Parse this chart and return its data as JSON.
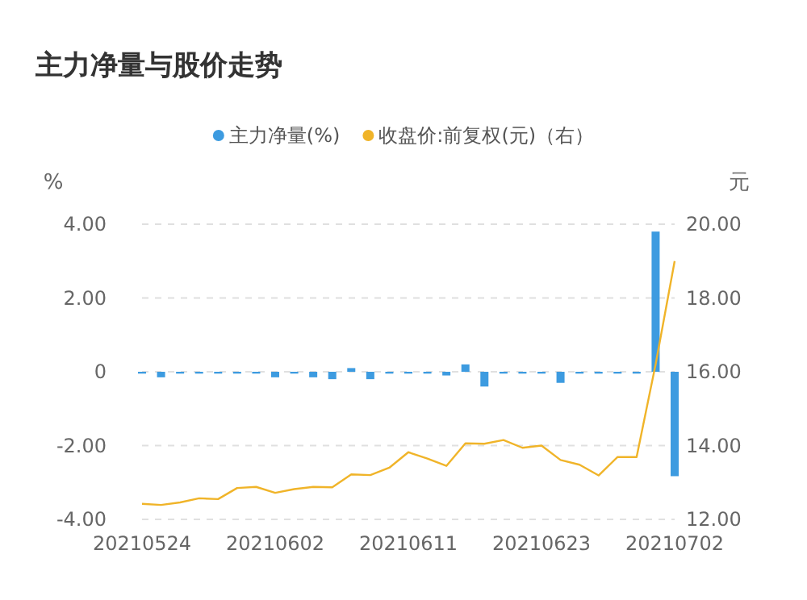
{
  "chart_data": {
    "type": "bar",
    "title": "主力净量与股价走势",
    "ylabel": "%",
    "y2label": "元",
    "categories": [
      "20210524",
      null,
      null,
      null,
      null,
      null,
      null,
      "20210602",
      null,
      null,
      null,
      null,
      null,
      null,
      "20210611",
      null,
      null,
      null,
      null,
      null,
      null,
      "20210623",
      null,
      null,
      null,
      null,
      null,
      null,
      "20210702"
    ],
    "series": [
      {
        "name": "主力净量(%)",
        "color": "#3d9be0",
        "values": [
          -0.05,
          -0.15,
          -0.05,
          -0.05,
          -0.05,
          -0.05,
          -0.05,
          -0.15,
          -0.05,
          -0.15,
          -0.2,
          0.1,
          -0.2,
          -0.05,
          -0.05,
          -0.05,
          -0.1,
          0.2,
          -0.4,
          -0.05,
          -0.05,
          -0.05,
          -0.3,
          -0.05,
          -0.05,
          -0.05,
          -0.05,
          3.8,
          -2.83
        ]
      },
      {
        "name": "收盘价:前复权(元)（右）",
        "type": "line",
        "axis": "y2",
        "color": "#f0b429",
        "values": [
          12.42,
          12.39,
          12.46,
          12.57,
          12.55,
          12.85,
          12.88,
          12.72,
          12.82,
          12.88,
          12.87,
          13.22,
          13.2,
          13.4,
          13.82,
          13.65,
          13.45,
          14.06,
          14.05,
          14.15,
          13.94,
          14.0,
          13.61,
          13.48,
          13.19,
          13.69,
          13.69,
          16.2,
          19.0
        ]
      }
    ],
    "ylim": [
      -4,
      4
    ],
    "yticks": [
      {
        "value": -4,
        "label": "-4.00"
      },
      {
        "value": -2,
        "label": "-2.00"
      },
      0,
      {
        "value": 2,
        "label": "2.00"
      },
      {
        "value": 4,
        "label": "4.00"
      }
    ],
    "y2lim": [
      12,
      20
    ],
    "y2ticks": [
      {
        "value": 12,
        "label": "12.00"
      },
      {
        "value": 14,
        "label": "14.00"
      },
      {
        "value": 16,
        "label": "16.00"
      },
      {
        "value": 18,
        "label": "18.00"
      },
      {
        "value": 20,
        "label": "20.00"
      }
    ],
    "grid": "y",
    "legend": "top"
  }
}
